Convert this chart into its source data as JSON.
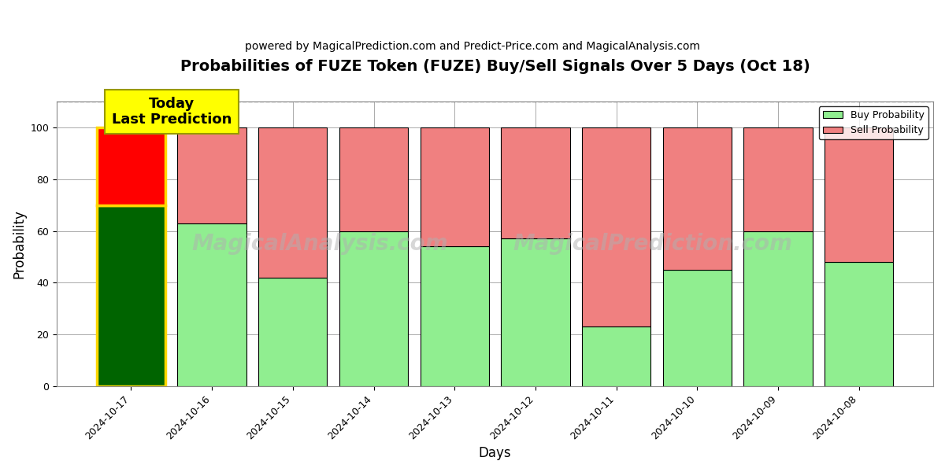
{
  "title": "Probabilities of FUZE Token (FUZE) Buy/Sell Signals Over 5 Days (Oct 18)",
  "subtitle": "powered by MagicalPrediction.com and Predict-Price.com and MagicalAnalysis.com",
  "xlabel": "Days",
  "ylabel": "Probability",
  "dates": [
    "2024-10-17",
    "2024-10-16",
    "2024-10-15",
    "2024-10-14",
    "2024-10-13",
    "2024-10-12",
    "2024-10-11",
    "2024-10-10",
    "2024-10-09",
    "2024-10-08"
  ],
  "buy_values": [
    70,
    63,
    42,
    60,
    54,
    57,
    23,
    45,
    60,
    48
  ],
  "sell_values": [
    30,
    37,
    58,
    40,
    46,
    43,
    77,
    55,
    40,
    52
  ],
  "today_buy_color": "#006400",
  "today_sell_color": "#FF0000",
  "buy_color": "#90EE90",
  "sell_color": "#F08080",
  "today_bar_edgecolor": "#FFD700",
  "bar_edgecolor": "#000000",
  "today_annotation_bg": "#FFFF00",
  "today_annotation_text": "Today\nLast Prediction",
  "today_annotation_fontsize": 13,
  "ylim": [
    0,
    110
  ],
  "yticks": [
    0,
    20,
    40,
    60,
    80,
    100
  ],
  "dashed_line_y": 110,
  "grid_color": "#aaaaaa",
  "watermark_text1": "MagicalAnalysis.com",
  "watermark_text2": "MagicalPrediction.com",
  "legend_buy_label": "Buy Probability",
  "legend_sell_label": "Sell Probability",
  "figsize": [
    12,
    6
  ],
  "dpi": 100,
  "title_fontsize": 14,
  "subtitle_fontsize": 10,
  "axis_label_fontsize": 12,
  "tick_fontsize": 9,
  "bar_width": 0.85
}
